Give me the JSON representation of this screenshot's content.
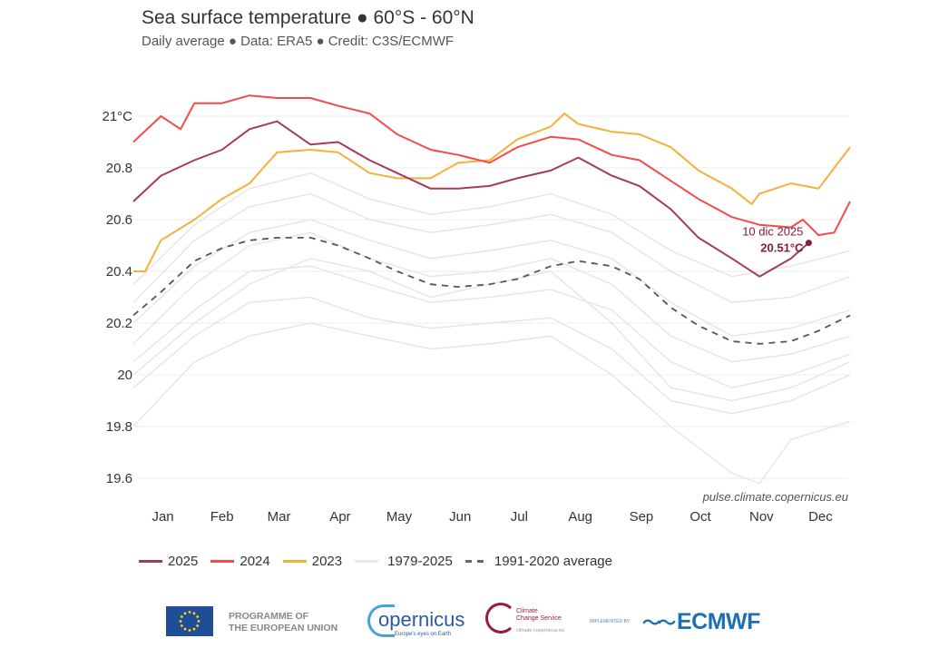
{
  "title": "Sea surface temperature ● 60°S - 60°N",
  "subtitle": "Daily average ● Data: ERA5 ● Credit: C3S/ECMWF",
  "source": "pulse.climate.copernicus.eu",
  "chart_data": {
    "type": "line",
    "title": "Sea surface temperature ● 60°S - 60°N",
    "subtitle": "Daily average ● Data: ERA5 ● Credit: C3S/ECMWF",
    "xlabel": "",
    "ylabel": "",
    "ylim": [
      19.55,
      21.1
    ],
    "yticks": [
      {
        "v": 21,
        "label": "21°C"
      },
      {
        "v": 20.8,
        "label": "20.8"
      },
      {
        "v": 20.6,
        "label": "20.6"
      },
      {
        "v": 20.4,
        "label": "20.4"
      },
      {
        "v": 20.2,
        "label": "20.2"
      },
      {
        "v": 20,
        "label": "20"
      },
      {
        "v": 19.8,
        "label": "19.8"
      },
      {
        "v": 19.6,
        "label": "19.6"
      }
    ],
    "xticks": [
      {
        "date": "01-16",
        "label": "Jan"
      },
      {
        "date": "02-15",
        "label": "Feb"
      },
      {
        "date": "03-16",
        "label": "Mar"
      },
      {
        "date": "04-16",
        "label": "Apr"
      },
      {
        "date": "05-16",
        "label": "May"
      },
      {
        "date": "06-16",
        "label": "Jun"
      },
      {
        "date": "07-16",
        "label": "Jul"
      },
      {
        "date": "08-16",
        "label": "Aug"
      },
      {
        "date": "09-16",
        "label": "Sep"
      },
      {
        "date": "10-16",
        "label": "Oct"
      },
      {
        "date": "11-16",
        "label": "Nov"
      },
      {
        "date": "12-16",
        "label": "Dec"
      }
    ],
    "grid": "horizontal",
    "legend_position": "bottom",
    "series": [
      {
        "name": "1979-2025",
        "style": "history",
        "color": "#e3e3e3",
        "lines": [
          [
            [
              "01-01",
              19.8
            ],
            [
              "02-01",
              20.05
            ],
            [
              "03-01",
              20.15
            ],
            [
              "04-01",
              20.2
            ],
            [
              "05-01",
              20.15
            ],
            [
              "06-01",
              20.1
            ],
            [
              "07-01",
              20.12
            ],
            [
              "08-01",
              20.15
            ],
            [
              "09-01",
              20.0
            ],
            [
              "10-01",
              19.8
            ],
            [
              "11-01",
              19.62
            ],
            [
              "11-15",
              19.58
            ],
            [
              "12-01",
              19.75
            ],
            [
              "12-31",
              19.82
            ]
          ],
          [
            [
              "01-01",
              19.95
            ],
            [
              "02-01",
              20.15
            ],
            [
              "03-01",
              20.28
            ],
            [
              "04-01",
              20.3
            ],
            [
              "05-01",
              20.22
            ],
            [
              "06-01",
              20.18
            ],
            [
              "07-01",
              20.2
            ],
            [
              "08-01",
              20.22
            ],
            [
              "09-01",
              20.1
            ],
            [
              "10-01",
              19.9
            ],
            [
              "11-01",
              19.85
            ],
            [
              "12-01",
              19.9
            ],
            [
              "12-31",
              20.0
            ]
          ],
          [
            [
              "01-01",
              20.05
            ],
            [
              "02-01",
              20.25
            ],
            [
              "03-01",
              20.4
            ],
            [
              "04-01",
              20.42
            ],
            [
              "05-01",
              20.35
            ],
            [
              "06-01",
              20.28
            ],
            [
              "07-01",
              20.3
            ],
            [
              "08-01",
              20.33
            ],
            [
              "09-01",
              20.25
            ],
            [
              "10-01",
              20.05
            ],
            [
              "11-01",
              19.95
            ],
            [
              "12-01",
              20.0
            ],
            [
              "12-31",
              20.08
            ]
          ],
          [
            [
              "01-01",
              20.12
            ],
            [
              "02-01",
              20.35
            ],
            [
              "03-01",
              20.5
            ],
            [
              "04-01",
              20.55
            ],
            [
              "05-01",
              20.45
            ],
            [
              "06-01",
              20.38
            ],
            [
              "07-01",
              20.4
            ],
            [
              "08-01",
              20.45
            ],
            [
              "09-01",
              20.35
            ],
            [
              "10-01",
              20.15
            ],
            [
              "11-01",
              20.05
            ],
            [
              "12-01",
              20.08
            ],
            [
              "12-31",
              20.15
            ]
          ],
          [
            [
              "01-01",
              20.2
            ],
            [
              "02-01",
              20.42
            ],
            [
              "03-01",
              20.55
            ],
            [
              "04-01",
              20.6
            ],
            [
              "05-01",
              20.52
            ],
            [
              "06-01",
              20.45
            ],
            [
              "07-01",
              20.48
            ],
            [
              "08-01",
              20.52
            ],
            [
              "09-01",
              20.45
            ],
            [
              "10-01",
              20.28
            ],
            [
              "11-01",
              20.15
            ],
            [
              "12-01",
              20.18
            ],
            [
              "12-31",
              20.25
            ]
          ],
          [
            [
              "01-01",
              20.28
            ],
            [
              "02-01",
              20.52
            ],
            [
              "03-01",
              20.65
            ],
            [
              "04-01",
              20.7
            ],
            [
              "05-01",
              20.6
            ],
            [
              "06-01",
              20.55
            ],
            [
              "07-01",
              20.58
            ],
            [
              "08-01",
              20.62
            ],
            [
              "09-01",
              20.55
            ],
            [
              "10-01",
              20.4
            ],
            [
              "11-01",
              20.28
            ],
            [
              "12-01",
              20.3
            ],
            [
              "12-31",
              20.38
            ]
          ],
          [
            [
              "01-01",
              20.35
            ],
            [
              "02-01",
              20.58
            ],
            [
              "03-01",
              20.72
            ],
            [
              "04-01",
              20.78
            ],
            [
              "05-01",
              20.68
            ],
            [
              "06-01",
              20.62
            ],
            [
              "07-01",
              20.65
            ],
            [
              "08-01",
              20.7
            ],
            [
              "09-01",
              20.62
            ],
            [
              "10-01",
              20.48
            ],
            [
              "11-01",
              20.38
            ],
            [
              "12-01",
              20.42
            ],
            [
              "12-31",
              20.48
            ]
          ],
          [
            [
              "01-01",
              20.0
            ],
            [
              "02-01",
              20.2
            ],
            [
              "03-01",
              20.35
            ],
            [
              "04-01",
              20.45
            ],
            [
              "05-01",
              20.4
            ],
            [
              "06-01",
              20.3
            ],
            [
              "07-01",
              20.35
            ],
            [
              "08-01",
              20.4
            ],
            [
              "09-01",
              20.2
            ],
            [
              "10-01",
              19.95
            ],
            [
              "11-01",
              19.9
            ],
            [
              "12-01",
              19.95
            ],
            [
              "12-31",
              20.05
            ]
          ]
        ]
      },
      {
        "name": "1991-2020 average",
        "style": "dashed",
        "color": "#555555",
        "points": [
          [
            "01-01",
            20.23
          ],
          [
            "01-15",
            20.32
          ],
          [
            "02-01",
            20.44
          ],
          [
            "02-15",
            20.49
          ],
          [
            "03-01",
            20.52
          ],
          [
            "03-15",
            20.53
          ],
          [
            "04-01",
            20.53
          ],
          [
            "04-15",
            20.5
          ],
          [
            "05-01",
            20.45
          ],
          [
            "05-15",
            20.4
          ],
          [
            "06-01",
            20.35
          ],
          [
            "06-15",
            20.34
          ],
          [
            "07-01",
            20.35
          ],
          [
            "07-15",
            20.37
          ],
          [
            "08-01",
            20.42
          ],
          [
            "08-15",
            20.44
          ],
          [
            "09-01",
            20.42
          ],
          [
            "09-15",
            20.37
          ],
          [
            "10-01",
            20.26
          ],
          [
            "10-15",
            20.19
          ],
          [
            "11-01",
            20.13
          ],
          [
            "11-15",
            20.12
          ],
          [
            "12-01",
            20.13
          ],
          [
            "12-15",
            20.17
          ],
          [
            "12-31",
            20.23
          ]
        ]
      },
      {
        "name": "2023",
        "color": "#f5b038",
        "points": [
          [
            "01-01",
            20.4
          ],
          [
            "01-07",
            20.4
          ],
          [
            "01-15",
            20.52
          ],
          [
            "02-01",
            20.6
          ],
          [
            "02-15",
            20.68
          ],
          [
            "03-01",
            20.74
          ],
          [
            "03-15",
            20.86
          ],
          [
            "04-01",
            20.87
          ],
          [
            "04-15",
            20.86
          ],
          [
            "05-01",
            20.78
          ],
          [
            "05-15",
            20.76
          ],
          [
            "06-01",
            20.76
          ],
          [
            "06-15",
            20.82
          ],
          [
            "07-01",
            20.83
          ],
          [
            "07-15",
            20.91
          ],
          [
            "08-01",
            20.96
          ],
          [
            "08-08",
            21.01
          ],
          [
            "08-15",
            20.97
          ],
          [
            "09-01",
            20.94
          ],
          [
            "09-15",
            20.93
          ],
          [
            "10-01",
            20.88
          ],
          [
            "10-15",
            20.79
          ],
          [
            "11-01",
            20.72
          ],
          [
            "11-11",
            20.66
          ],
          [
            "11-15",
            20.7
          ],
          [
            "12-01",
            20.74
          ],
          [
            "12-15",
            20.72
          ],
          [
            "12-23",
            20.8
          ],
          [
            "12-31",
            20.88
          ]
        ]
      },
      {
        "name": "2024",
        "color": "#f44a4a",
        "points": [
          [
            "01-01",
            20.9
          ],
          [
            "01-15",
            21.0
          ],
          [
            "01-25",
            20.95
          ],
          [
            "02-01",
            21.05
          ],
          [
            "02-15",
            21.05
          ],
          [
            "03-01",
            21.08
          ],
          [
            "03-15",
            21.07
          ],
          [
            "04-01",
            21.07
          ],
          [
            "04-15",
            21.04
          ],
          [
            "05-01",
            21.01
          ],
          [
            "05-15",
            20.93
          ],
          [
            "06-01",
            20.87
          ],
          [
            "06-15",
            20.85
          ],
          [
            "07-01",
            20.82
          ],
          [
            "07-15",
            20.88
          ],
          [
            "08-01",
            20.92
          ],
          [
            "08-15",
            20.91
          ],
          [
            "09-01",
            20.85
          ],
          [
            "09-15",
            20.83
          ],
          [
            "10-01",
            20.75
          ],
          [
            "10-15",
            20.68
          ],
          [
            "11-01",
            20.61
          ],
          [
            "11-15",
            20.58
          ],
          [
            "12-01",
            20.57
          ],
          [
            "12-07",
            20.6
          ],
          [
            "12-15",
            20.54
          ],
          [
            "12-23",
            20.55
          ],
          [
            "12-31",
            20.67
          ]
        ]
      },
      {
        "name": "2025",
        "color": "#a63a5a",
        "points": [
          [
            "01-01",
            20.67
          ],
          [
            "01-15",
            20.77
          ],
          [
            "02-01",
            20.83
          ],
          [
            "02-15",
            20.87
          ],
          [
            "03-01",
            20.95
          ],
          [
            "03-15",
            20.98
          ],
          [
            "04-01",
            20.89
          ],
          [
            "04-15",
            20.9
          ],
          [
            "05-01",
            20.83
          ],
          [
            "05-15",
            20.78
          ],
          [
            "06-01",
            20.72
          ],
          [
            "06-15",
            20.72
          ],
          [
            "07-01",
            20.73
          ],
          [
            "07-15",
            20.76
          ],
          [
            "08-01",
            20.79
          ],
          [
            "08-15",
            20.84
          ],
          [
            "09-01",
            20.77
          ],
          [
            "09-15",
            20.73
          ],
          [
            "10-01",
            20.64
          ],
          [
            "10-15",
            20.53
          ],
          [
            "11-01",
            20.45
          ],
          [
            "11-15",
            20.38
          ],
          [
            "12-01",
            20.45
          ],
          [
            "12-10",
            20.51
          ]
        ]
      }
    ],
    "annotation": {
      "date_label": "10 dic 2025",
      "value_label": "20.51°C",
      "date": "12-10",
      "value": 20.51,
      "color": "#8b1a3a"
    }
  },
  "legend": [
    {
      "label": "2025",
      "color": "#a63a5a",
      "style": "solid"
    },
    {
      "label": "2024",
      "color": "#f44a4a",
      "style": "solid"
    },
    {
      "label": "2023",
      "color": "#f5b038",
      "style": "solid"
    },
    {
      "label": "1979-2025",
      "color": "#e3e3e3",
      "style": "solid"
    },
    {
      "label": "1991-2020 average",
      "color": "#666666",
      "style": "dashed"
    }
  ],
  "logos": {
    "eu": "PROGRAMME OF THE EUROPEAN UNION",
    "eu_line1": "PROGRAMME OF",
    "eu_line2": "THE EUROPEAN UNION",
    "copernicus": "opernicus",
    "copernicus_tagline": "Europe's eyes on Earth",
    "c3s_line1": "Climate",
    "c3s_line2": "Change Service",
    "c3s_url": "climate.copernicus.eu",
    "implemented_by": "IMPLEMENTED BY",
    "ecmwf": "ECMWF"
  }
}
